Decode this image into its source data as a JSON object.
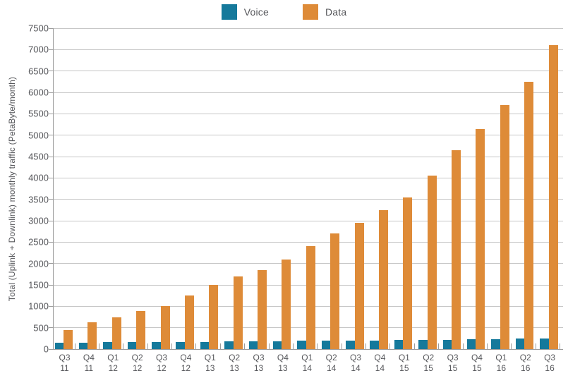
{
  "legend": {
    "items": [
      {
        "label": "Voice",
        "color": "#15799B",
        "icon": "voice-swatch"
      },
      {
        "label": "Data",
        "color": "#DE8B38",
        "icon": "data-swatch"
      }
    ]
  },
  "colors": {
    "voice": "#15799B",
    "data": "#DE8B38",
    "grid": "#C6C6C6",
    "axis": "#9C9C9C",
    "text": "#55565A"
  },
  "chart_data": {
    "type": "bar",
    "title": "",
    "xlabel": "",
    "ylabel": "Total (Uplink + Downlink) monthly traffic (PetaByte/month)",
    "ylim": [
      0,
      7500
    ],
    "ytick_step": 500,
    "grid": true,
    "legend_position": "top-center",
    "categories": [
      "Q3 11",
      "Q4 11",
      "Q1 12",
      "Q2 12",
      "Q3 12",
      "Q4 12",
      "Q1 13",
      "Q2 13",
      "Q3 13",
      "Q4 13",
      "Q1 14",
      "Q2 14",
      "Q3 14",
      "Q4 14",
      "Q1 15",
      "Q2 15",
      "Q3 15",
      "Q4 15",
      "Q1 16",
      "Q2 16",
      "Q3 16"
    ],
    "series": [
      {
        "name": "Voice",
        "color": "#15799B",
        "values": [
          150,
          155,
          160,
          165,
          165,
          170,
          170,
          175,
          180,
          185,
          190,
          195,
          200,
          205,
          210,
          215,
          220,
          225,
          230,
          240,
          255
        ]
      },
      {
        "name": "Data",
        "color": "#DE8B38",
        "values": [
          450,
          620,
          750,
          890,
          1010,
          1250,
          1500,
          1700,
          1850,
          2100,
          2400,
          2700,
          2950,
          3250,
          3550,
          4050,
          4650,
          5150,
          5700,
          6250,
          7100
        ]
      }
    ]
  }
}
